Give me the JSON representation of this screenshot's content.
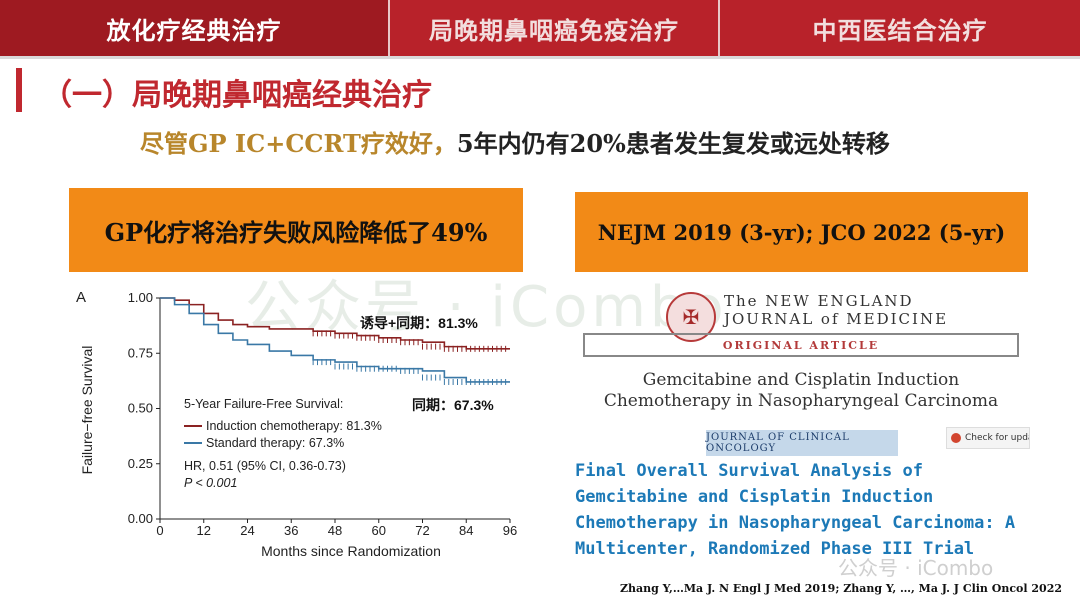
{
  "tabs": [
    {
      "label": "放化疗经典治疗"
    },
    {
      "label": "局晚期鼻咽癌免疫治疗"
    },
    {
      "label": "中西医结合治疗"
    }
  ],
  "section_title": "（一）局晚期鼻咽癌经典治疗",
  "subtitle": {
    "highlight": "尽管GP IC+CCRT疗效好，",
    "rest": "5年内仍有20%患者发生复发或远处转移"
  },
  "left_banner": "GP化疗将治疗失败风险降低了49%",
  "right_banner": "NEJM 2019 (3-yr); JCO 2022 (5-yr)",
  "watermark": "公众号 · iCombo",
  "chart_data": {
    "type": "line",
    "panel_label": "A",
    "xlabel": "Months since Randomization",
    "ylabel": "Failure−free Survival",
    "xlim": [
      0,
      96
    ],
    "ylim": [
      0,
      1
    ],
    "x_ticks": [
      "0",
      "12",
      "24",
      "36",
      "48",
      "60",
      "72",
      "84",
      "96"
    ],
    "y_ticks": [
      "0.00",
      "0.25",
      "0.50",
      "0.75",
      "1.00"
    ],
    "legend_title": "5-Year Failure-Free Survival:",
    "hr_text": "HR, 0.51 (95% CI, 0.36-0.73)",
    "p_text": "P < 0.001",
    "annotation_induction": "诱导+同期：81.3%",
    "annotation_standard": "同期：67.3%",
    "series": [
      {
        "name": "Induction chemotherapy: 81.3%",
        "color": "#8b2222",
        "x": [
          0,
          4,
          8,
          12,
          16,
          20,
          24,
          30,
          36,
          42,
          48,
          54,
          60,
          66,
          72,
          78,
          84,
          90,
          96
        ],
        "y": [
          1.0,
          0.99,
          0.97,
          0.93,
          0.9,
          0.88,
          0.87,
          0.86,
          0.86,
          0.85,
          0.84,
          0.83,
          0.82,
          0.81,
          0.8,
          0.78,
          0.77,
          0.77,
          0.77
        ]
      },
      {
        "name": "Standard therapy: 67.3%",
        "color": "#3a78a6",
        "x": [
          0,
          4,
          8,
          12,
          16,
          20,
          24,
          30,
          36,
          42,
          48,
          54,
          60,
          66,
          72,
          78,
          84,
          90,
          96
        ],
        "y": [
          1.0,
          0.97,
          0.93,
          0.88,
          0.84,
          0.81,
          0.79,
          0.76,
          0.74,
          0.72,
          0.71,
          0.69,
          0.68,
          0.68,
          0.67,
          0.64,
          0.62,
          0.62,
          0.62
        ]
      }
    ]
  },
  "nejm": {
    "name_line1": "The NEW ENGLAND",
    "name_line2": "JOURNAL of MEDICINE",
    "original_article": "ORIGINAL ARTICLE",
    "title_line1": "Gemcitabine and Cisplatin Induction",
    "title_line2": "Chemotherapy in Nasopharyngeal Carcinoma"
  },
  "jco": {
    "tag": "JOURNAL OF CLINICAL ONCOLOGY",
    "check_label": "Check for upda",
    "title_lines": [
      "Final Overall Survival Analysis of",
      "Gemcitabine and Cisplatin Induction",
      "Chemotherapy in Nasopharyngeal Carcinoma: A",
      "Multicenter, Randomized Phase III Trial"
    ]
  },
  "citation": "Zhang Y,…Ma J. N Engl J Med 2019;  Zhang  Y, …, Ma J. J Clin Oncol 2022",
  "colors": {
    "tab_red": "#b8222a",
    "banner_orange": "#f28a17",
    "title_red": "#c0282f",
    "jco_blue": "#1c79b7"
  }
}
